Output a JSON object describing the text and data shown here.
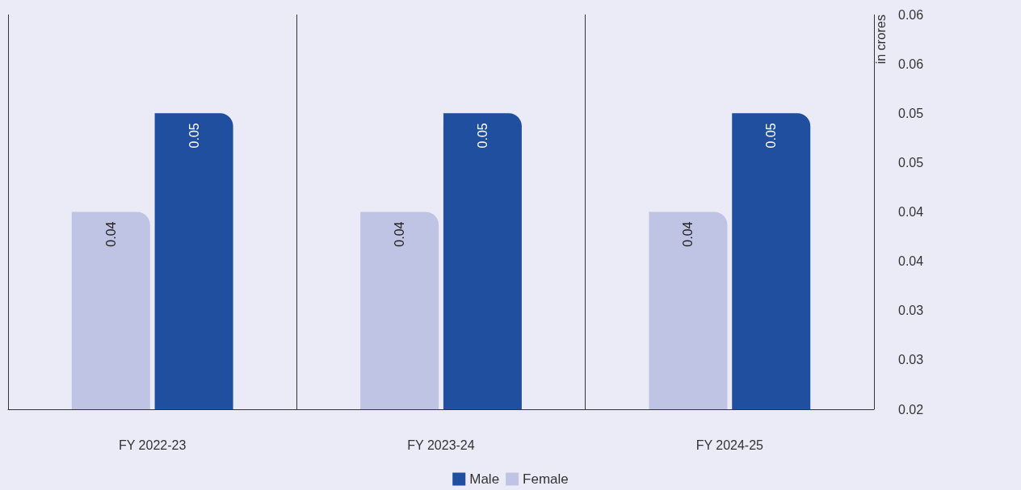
{
  "chart_data": {
    "type": "bar",
    "ylabel": "in crores",
    "categories": [
      "FY 2022-23",
      "FY 2023-24",
      "FY 2024-25"
    ],
    "series": [
      {
        "name": "Male",
        "color": "#1f4f9e",
        "values": [
          0.05,
          0.05,
          0.05
        ]
      },
      {
        "name": "Female",
        "color": "#c0c4e4",
        "values": [
          0.04,
          0.04,
          0.04
        ]
      }
    ],
    "ylim": [
      0.02,
      0.06
    ],
    "yticks": [
      0.02,
      {
        "value": 0.025,
        "label": "0.03"
      },
      0.03,
      {
        "value": 0.035,
        "label": "0.04"
      },
      0.04,
      {
        "value": 0.045,
        "label": "0.05"
      },
      0.05,
      {
        "value": 0.055,
        "label": "0.06"
      },
      0.06
    ],
    "grid": "x",
    "legend": "bottom",
    "data_labels": true
  }
}
